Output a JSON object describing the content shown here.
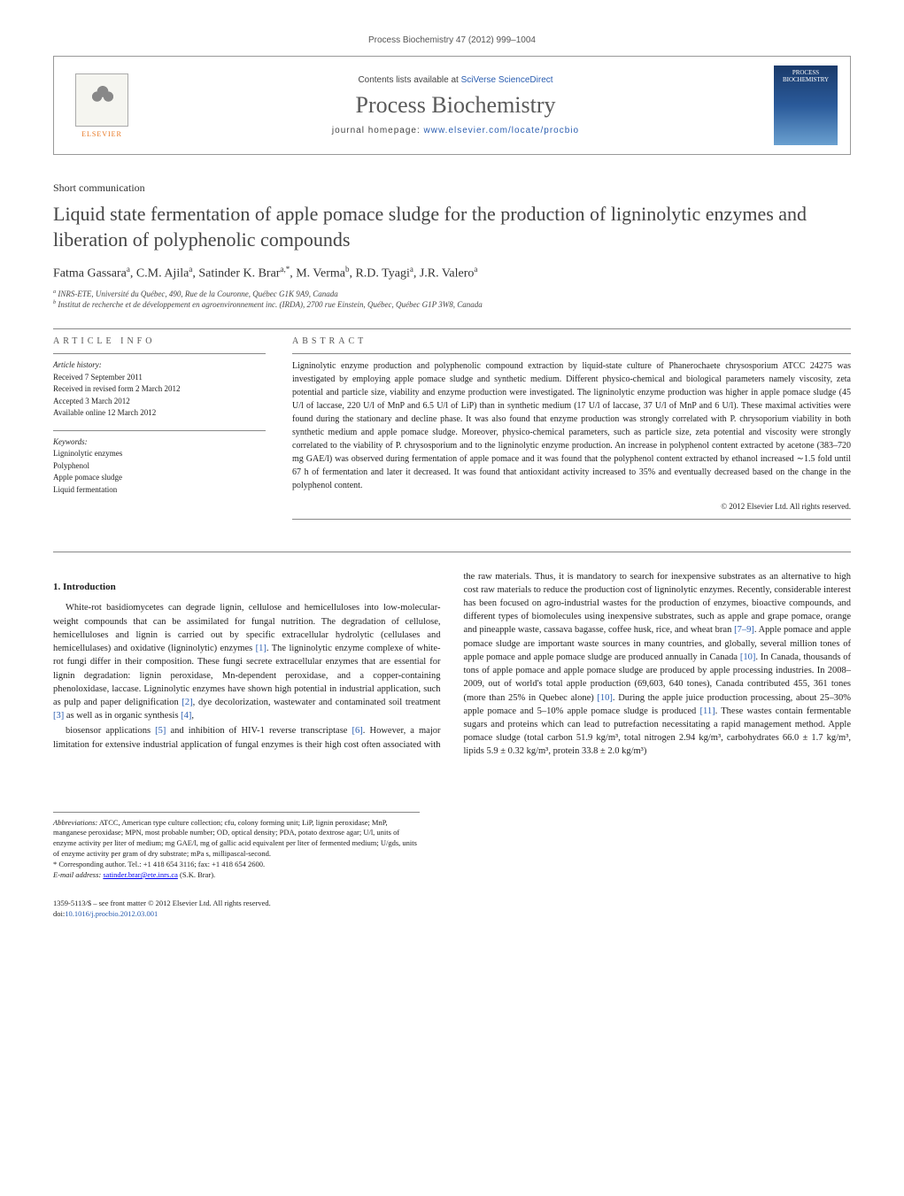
{
  "citation": "Process Biochemistry 47 (2012) 999–1004",
  "header": {
    "contents_prefix": "Contents lists available at ",
    "contents_link": "SciVerse ScienceDirect",
    "journal": "Process Biochemistry",
    "homepage_prefix": "journal homepage: ",
    "homepage_link": "www.elsevier.com/locate/procbio",
    "publisher": "ELSEVIER",
    "cover_text": "PROCESS BIOCHEMISTRY"
  },
  "article": {
    "type": "Short communication",
    "title": "Liquid state fermentation of apple pomace sludge for the production of ligninolytic enzymes and liberation of polyphenolic compounds",
    "authors_html": "Fatma Gassara<sup>a</sup>, C.M. Ajila<sup>a</sup>, Satinder K. Brar<sup>a,*</sup>, M. Verma<sup>b</sup>, R.D. Tyagi<sup>a</sup>, J.R. Valero<sup>a</sup>",
    "affiliations": {
      "a": "INRS-ETE, Université du Québec, 490, Rue de la Couronne, Québec G1K 9A9, Canada",
      "b": "Institut de recherche et de développement en agroenvironnement inc. (IRDA), 2700 rue Einstein, Québec, Québec G1P 3W8, Canada"
    }
  },
  "article_info": {
    "heading": "ARTICLE INFO",
    "history_label": "Article history:",
    "history": [
      "Received 7 September 2011",
      "Received in revised form 2 March 2012",
      "Accepted 3 March 2012",
      "Available online 12 March 2012"
    ],
    "keywords_label": "Keywords:",
    "keywords": [
      "Ligninolytic enzymes",
      "Polyphenol",
      "Apple pomace sludge",
      "Liquid fermentation"
    ]
  },
  "abstract": {
    "heading": "ABSTRACT",
    "text": "Ligninolytic enzyme production and polyphenolic compound extraction by liquid-state culture of Phanerochaete chrysosporium ATCC 24275 was investigated by employing apple pomace sludge and synthetic medium. Different physico-chemical and biological parameters namely viscosity, zeta potential and particle size, viability and enzyme production were investigated. The ligninolytic enzyme production was higher in apple pomace sludge (45 U/l of laccase, 220 U/l of MnP and 6.5 U/l of LiP) than in synthetic medium (17 U/l of laccase, 37 U/l of MnP and 6 U/l). These maximal activities were found during the stationary and decline phase. It was also found that enzyme production was strongly correlated with P. chrysoporium viability in both synthetic medium and apple pomace sludge. Moreover, physico-chemical parameters, such as particle size, zeta potential and viscosity were strongly correlated to the viability of P. chrysosporium and to the ligninolytic enzyme production. An increase in polyphenol content extracted by acetone (383–720 mg GAE/l) was observed during fermentation of apple pomace and it was found that the polyphenol content extracted by ethanol increased ∼1.5 fold until 67 h of fermentation and later it decreased. It was found that antioxidant activity increased to 35% and eventually decreased based on the change in the polyphenol content.",
    "copyright": "© 2012 Elsevier Ltd. All rights reserved."
  },
  "body": {
    "section1_heading": "1. Introduction",
    "para1": "White-rot basidiomycetes can degrade lignin, cellulose and hemicelluloses into low-molecular-weight compounds that can be assimilated for fungal nutrition. The degradation of cellulose, hemicelluloses and lignin is carried out by specific extracellular hydrolytic (cellulases and hemicellulases) and oxidative (ligninolytic) enzymes [1]. The ligninolytic enzyme complexe of white-rot fungi differ in their composition. These fungi secrete extracellular enzymes that are essential for lignin degradation: lignin peroxidase, Mn-dependent peroxidase, and a copper-containing phenoloxidase, laccase. Ligninolytic enzymes have shown high potential in industrial application, such as pulp and paper delignification [2], dye decolorization, wastewater and contaminated soil treatment [3] as well as in organic synthesis [4],",
    "para2": "biosensor applications [5] and inhibition of HIV-1 reverse transcriptase [6]. However, a major limitation for extensive industrial application of fungal enzymes is their high cost often associated with the raw materials. Thus, it is mandatory to search for inexpensive substrates as an alternative to high cost raw materials to reduce the production cost of ligninolytic enzymes. Recently, considerable interest has been focused on agro-industrial wastes for the production of enzymes, bioactive compounds, and different types of biomolecules using inexpensive substrates, such as apple and grape pomace, orange and pineapple waste, cassava bagasse, coffee husk, rice, and wheat bran [7–9]. Apple pomace and apple pomace sludge are important waste sources in many countries, and globally, several million tones of apple pomace and apple pomace sludge are produced annually in Canada [10]. In Canada, thousands of tons of apple pomace and apple pomace sludge are produced by apple processing industries. In 2008–2009, out of world's total apple production (69,603, 640 tones), Canada contributed 455, 361 tones (more than 25% in Quebec alone) [10]. During the apple juice production processing, about 25–30% apple pomace and 5–10% apple pomace sludge is produced [11]. These wastes contain fermentable sugars and proteins which can lead to putrefaction necessitating a rapid management method. Apple pomace sludge (total carbon 51.9 kg/m³, total nitrogen 2.94 kg/m³, carbohydrates 66.0 ± 1.7 kg/m³, lipids 5.9 ± 0.32 kg/m³, protein 33.8 ± 2.0 kg/m³)"
  },
  "footnotes": {
    "abbrev_label": "Abbreviations:",
    "abbrev_text": "ATCC, American type culture collection; cfu, colony forming unit; LiP, lignin peroxidase; MnP, manganese peroxidase; MPN, most probable number; OD, optical density; PDA, potato dextrose agar; U/l, units of enzyme activity per liter of medium; mg GAE/l, mg of gallic acid equivalent per liter of fermented medium; U/gds, units of enzyme activity per gram of dry substrate; mPa s, millipascal-second.",
    "corr_label": "* Corresponding author. Tel.: +1 418 654 3116; fax: +1 418 654 2600.",
    "email_label": "E-mail address:",
    "email": "satinder.brar@ete.inrs.ca",
    "email_suffix": "(S.K. Brar)."
  },
  "footer": {
    "line1": "1359-5113/$ – see front matter © 2012 Elsevier Ltd. All rights reserved.",
    "doi_prefix": "doi:",
    "doi": "10.1016/j.procbio.2012.03.001"
  },
  "colors": {
    "link": "#2a5db0",
    "publisher": "#e87722",
    "heading_gray": "#555555"
  }
}
